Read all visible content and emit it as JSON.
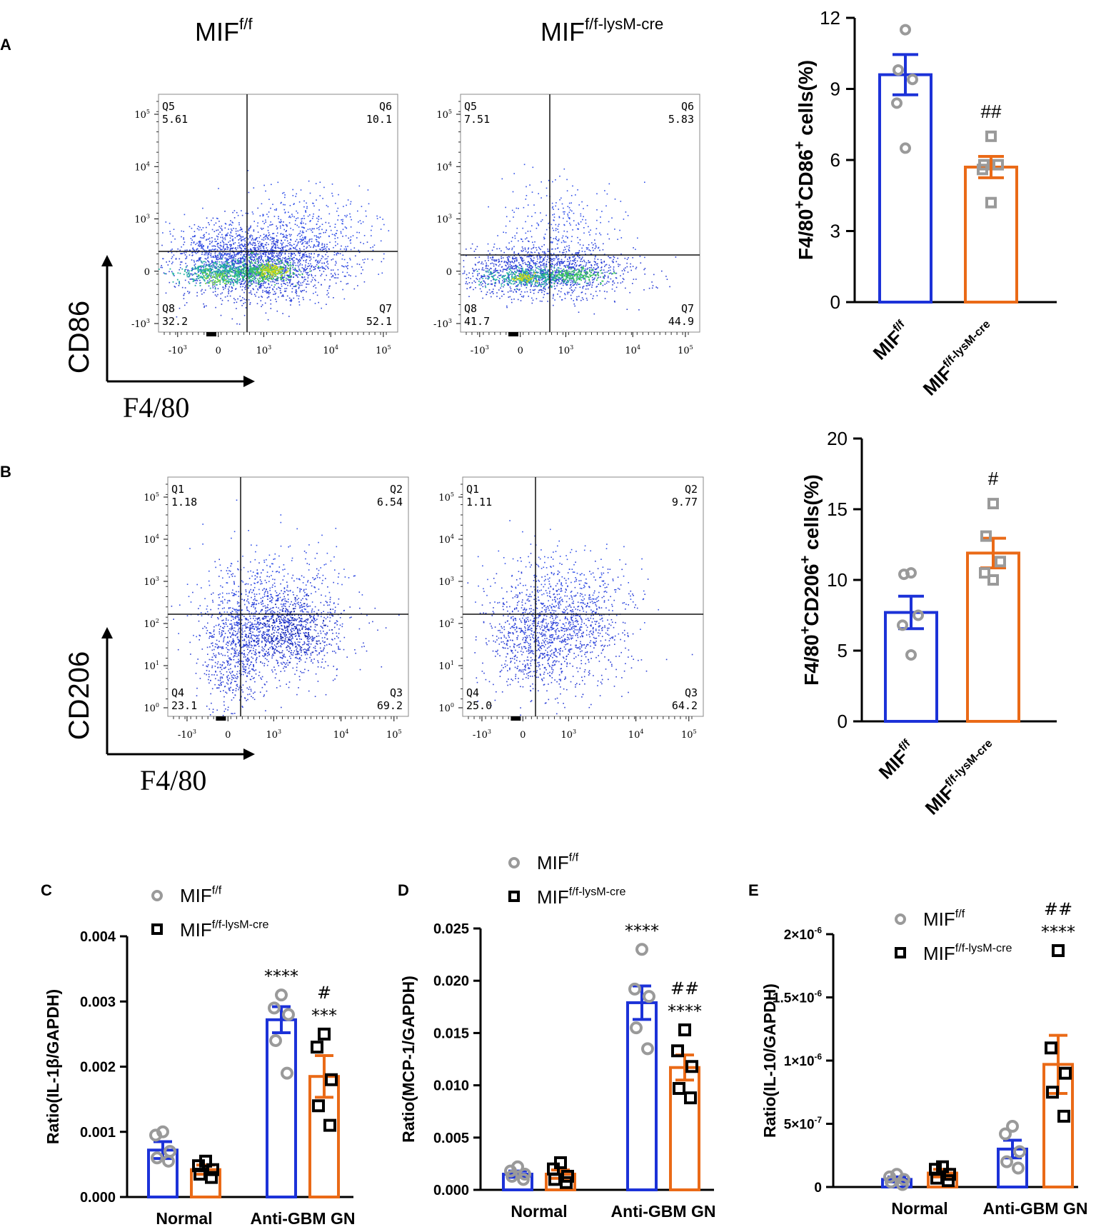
{
  "colors": {
    "blue": "#1c32d8",
    "orange": "#ea6a17",
    "gray": "#9a9a9a",
    "black": "#000000"
  },
  "panels": {
    "A": {
      "letter": "A",
      "col1_title": "MIF",
      "col1_sup": "f/f",
      "col2_title": "MIF",
      "col2_sup": "f/f-lysM-cre",
      "y_marker": "CD86",
      "x_marker": "F4/80"
    },
    "B": {
      "letter": "B",
      "y_marker": "CD206",
      "x_marker": "F4/80"
    },
    "C": {
      "letter": "C"
    },
    "D": {
      "letter": "D"
    },
    "E": {
      "letter": "E"
    }
  },
  "flow_plots": [
    {
      "id": "A1",
      "q_labels": [
        "Q5",
        "Q6",
        "Q8",
        "Q7"
      ],
      "q_values": [
        "5.61",
        "10.1",
        "32.2",
        "52.1"
      ],
      "y_ticks": [
        {
          "base": "10",
          "exp": "5"
        },
        {
          "base": "10",
          "exp": "4"
        },
        {
          "base": "10",
          "exp": "3"
        },
        {
          "base": "0",
          "exp": ""
        },
        {
          "base": "-10",
          "exp": "3"
        }
      ],
      "x_ticks": [
        {
          "base": "-10",
          "exp": "3"
        },
        {
          "base": "0",
          "exp": ""
        },
        {
          "base": "10",
          "exp": "3"
        },
        {
          "base": "10",
          "exp": "4"
        },
        {
          "base": "10",
          "exp": "5"
        }
      ]
    },
    {
      "id": "A2",
      "q_labels": [
        "Q5",
        "Q6",
        "Q8",
        "Q7"
      ],
      "q_values": [
        "7.51",
        "5.83",
        "41.7",
        "44.9"
      ],
      "y_ticks": [
        {
          "base": "10",
          "exp": "5"
        },
        {
          "base": "10",
          "exp": "4"
        },
        {
          "base": "10",
          "exp": "3"
        },
        {
          "base": "0",
          "exp": ""
        },
        {
          "base": "-10",
          "exp": "3"
        }
      ],
      "x_ticks": [
        {
          "base": "-10",
          "exp": "3"
        },
        {
          "base": "0",
          "exp": ""
        },
        {
          "base": "10",
          "exp": "3"
        },
        {
          "base": "10",
          "exp": "4"
        },
        {
          "base": "10",
          "exp": "5"
        }
      ]
    },
    {
      "id": "B1",
      "q_labels": [
        "Q1",
        "Q2",
        "Q4",
        "Q3"
      ],
      "q_values": [
        "1.18",
        "6.54",
        "23.1",
        "69.2"
      ],
      "y_ticks": [
        {
          "base": "10",
          "exp": "5"
        },
        {
          "base": "10",
          "exp": "4"
        },
        {
          "base": "10",
          "exp": "3"
        },
        {
          "base": "10",
          "exp": "2"
        },
        {
          "base": "10",
          "exp": "1"
        },
        {
          "base": "10",
          "exp": "0"
        }
      ],
      "x_ticks": [
        {
          "base": "-10",
          "exp": "3"
        },
        {
          "base": "0",
          "exp": ""
        },
        {
          "base": "10",
          "exp": "3"
        },
        {
          "base": "10",
          "exp": "4"
        },
        {
          "base": "10",
          "exp": "5"
        }
      ]
    },
    {
      "id": "B2",
      "q_labels": [
        "Q1",
        "Q2",
        "Q4",
        "Q3"
      ],
      "q_values": [
        "1.11",
        "9.77",
        "25.0",
        "64.2"
      ],
      "y_ticks": [
        {
          "base": "10",
          "exp": "5"
        },
        {
          "base": "10",
          "exp": "4"
        },
        {
          "base": "10",
          "exp": "3"
        },
        {
          "base": "10",
          "exp": "2"
        },
        {
          "base": "10",
          "exp": "1"
        },
        {
          "base": "10",
          "exp": "0"
        }
      ],
      "x_ticks": [
        {
          "base": "-10",
          "exp": "3"
        },
        {
          "base": "0",
          "exp": ""
        },
        {
          "base": "10",
          "exp": "3"
        },
        {
          "base": "10",
          "exp": "4"
        },
        {
          "base": "10",
          "exp": "5"
        }
      ]
    }
  ],
  "chart_data": [
    {
      "id": "A-bar",
      "type": "bar",
      "ylabel_parts": [
        "F4/80",
        "+",
        "CD86",
        "+",
        " cells(%)"
      ],
      "ylim": [
        0,
        12
      ],
      "yticks": [
        "0",
        "3",
        "6",
        "9",
        "12"
      ],
      "categories": [
        {
          "base": "MIF",
          "sup": "f/f"
        },
        {
          "base": "MIF",
          "sup": "f/f-lysM-cre"
        }
      ],
      "series": [
        {
          "name": "MIF f/f",
          "mean": 9.6,
          "sem": 0.85,
          "points": [
            11.5,
            9.8,
            9.4,
            8.4,
            6.5
          ]
        },
        {
          "name": "MIF f/f-lysM-cre",
          "mean": 5.7,
          "sem": 0.45,
          "points": [
            7.0,
            5.8,
            5.8,
            5.6,
            4.2
          ]
        }
      ],
      "annotations": [
        {
          "series": 1,
          "text": "##"
        }
      ]
    },
    {
      "id": "B-bar",
      "type": "bar",
      "ylabel_parts": [
        "F4/80",
        "+",
        "CD206",
        "+",
        " cells(%)"
      ],
      "ylim": [
        0,
        20
      ],
      "yticks": [
        "0",
        "5",
        "10",
        "15",
        "20"
      ],
      "categories": [
        {
          "base": "MIF",
          "sup": "f/f"
        },
        {
          "base": "MIF",
          "sup": "f/f-lysM-cre"
        }
      ],
      "series": [
        {
          "name": "MIF f/f",
          "mean": 7.7,
          "sem": 1.15,
          "points": [
            10.5,
            10.4,
            7.5,
            6.8,
            4.7
          ]
        },
        {
          "name": "MIF f/f-lysM-cre",
          "mean": 11.9,
          "sem": 1.05,
          "points": [
            15.4,
            13.1,
            11.3,
            10.5,
            10.0
          ]
        }
      ],
      "annotations": [
        {
          "series": 1,
          "text": "#"
        }
      ]
    },
    {
      "id": "C",
      "type": "grouped-bar",
      "ylabel": "Ratio(IL-1β/GAPDH)",
      "ylim": [
        0,
        0.004
      ],
      "yticks": [
        "0.000",
        "0.001",
        "0.002",
        "0.003",
        "0.004"
      ],
      "categories": [
        "Normal",
        "Anti-GBM GN"
      ],
      "legend": [
        {
          "base": "MIF",
          "sup": "f/f"
        },
        {
          "base": "MIF",
          "sup": "f/f-lysM-cre"
        }
      ],
      "series": [
        {
          "name": "MIF f/f",
          "means": [
            0.00072,
            0.00272
          ],
          "sems": [
            0.00013,
            0.0002
          ],
          "points": [
            [
              0.001,
              0.00095,
              0.0007,
              0.0006,
              0.00055
            ],
            [
              0.0031,
              0.0029,
              0.0028,
              0.0024,
              0.0019
            ]
          ]
        },
        {
          "name": "MIF f/f-lysM-cre",
          "means": [
            0.00042,
            0.00185
          ],
          "sems": [
            7e-05,
            0.00032
          ],
          "points": [
            [
              0.00055,
              0.00048,
              0.00042,
              0.00035,
              0.0003
            ],
            [
              0.0025,
              0.0023,
              0.0018,
              0.0014,
              0.0011
            ]
          ]
        }
      ],
      "annotations": [
        {
          "series": 0,
          "cat": 1,
          "lines": [
            "****"
          ]
        },
        {
          "series": 1,
          "cat": 1,
          "lines": [
            "#",
            "***"
          ]
        }
      ]
    },
    {
      "id": "D",
      "type": "grouped-bar",
      "ylabel": "Ratio(MCP-1/GAPDH)",
      "ylim": [
        0,
        0.025
      ],
      "yticks": [
        "0.000",
        "0.005",
        "0.010",
        "0.015",
        "0.020",
        "0.025"
      ],
      "categories": [
        "Normal",
        "Anti-GBM GN"
      ],
      "legend": [
        {
          "base": "MIF",
          "sup": "f/f"
        },
        {
          "base": "MIF",
          "sup": "f/f-lysM-cre"
        }
      ],
      "series": [
        {
          "name": "MIF f/f",
          "means": [
            0.0015,
            0.0179
          ],
          "sems": [
            0.0003,
            0.0016
          ],
          "points": [
            [
              0.0022,
              0.0018,
              0.0015,
              0.0013,
              0.001
            ],
            [
              0.023,
              0.0192,
              0.0185,
              0.0155,
              0.0135
            ]
          ]
        },
        {
          "name": "MIF f/f-lysM-cre",
          "means": [
            0.0015,
            0.0117
          ],
          "sems": [
            0.0004,
            0.0012
          ],
          "points": [
            [
              0.0026,
              0.002,
              0.0013,
              0.001,
              0.0007
            ],
            [
              0.0153,
              0.0133,
              0.0118,
              0.0097,
              0.0088
            ]
          ]
        }
      ],
      "annotations": [
        {
          "series": 0,
          "cat": 1,
          "lines": [
            "****"
          ]
        },
        {
          "series": 1,
          "cat": 1,
          "lines": [
            "##",
            "****"
          ]
        }
      ]
    },
    {
      "id": "E",
      "type": "grouped-bar",
      "ylabel": "Ratio(IL-10/GAPDH)",
      "ylim": [
        0,
        2e-06
      ],
      "yticks": [
        {
          "m": "0",
          "e": ""
        },
        {
          "m": "5×10",
          "e": "-7"
        },
        {
          "m": "1×10",
          "e": "-6"
        },
        {
          "m": "1.5×10",
          "e": "-6"
        },
        {
          "m": "2×10",
          "e": "-6"
        }
      ],
      "categories": [
        "Normal",
        "Anti-GBM GN"
      ],
      "legend": [
        {
          "base": "MIF",
          "sup": "f/f"
        },
        {
          "base": "MIF",
          "sup": "f/f-lysM-cre"
        }
      ],
      "series": [
        {
          "name": "MIF f/f",
          "means": [
            6e-08,
            3e-07
          ],
          "sems": [
            2e-08,
            7e-08
          ],
          "points": [
            [
              1e-07,
              8e-08,
              6e-08,
              4e-08,
              2e-08
            ],
            [
              4.8e-07,
              4.2e-07,
              2.8e-07,
              2e-07,
              1.5e-07
            ]
          ]
        },
        {
          "name": "MIF f/f-lysM-cre",
          "means": [
            1.1e-07,
            9.7e-07
          ],
          "sems": [
            3e-08,
            2.3e-07
          ],
          "points": [
            [
              1.6e-07,
              1.4e-07,
              1e-07,
              7e-08,
              5e-08
            ],
            [
              1.87e-06,
              1.1e-06,
              9e-07,
              7.5e-07,
              5.6e-07
            ]
          ]
        }
      ],
      "annotations": [
        {
          "series": 1,
          "cat": 1,
          "lines": [
            "##",
            "****"
          ]
        }
      ]
    }
  ]
}
